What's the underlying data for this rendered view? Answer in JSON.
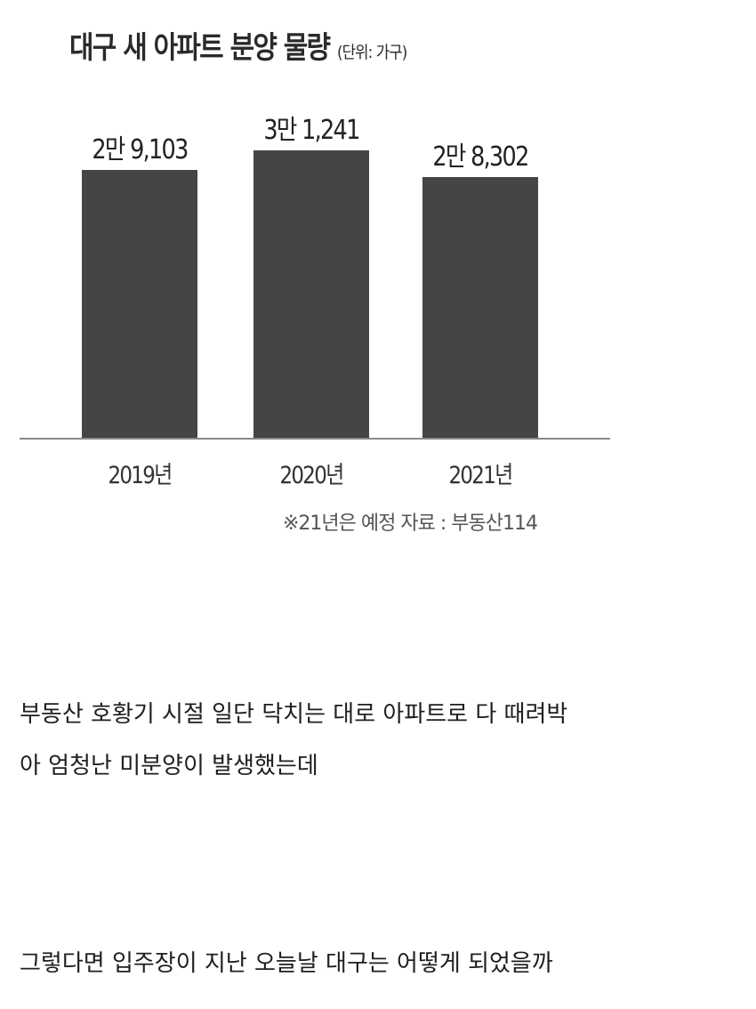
{
  "chart_data": {
    "type": "bar",
    "title": "대구 새 아파트 분양 물량",
    "unit": "(단위: 가구)",
    "categories": [
      "2019년",
      "2020년",
      "2021년"
    ],
    "values": [
      29103,
      31241,
      28302
    ],
    "data_labels": [
      "2만 9,103",
      "3만 1,241",
      "2만 8,302"
    ],
    "ylim": [
      0,
      32000
    ],
    "grid": false,
    "bar_color": "#454545",
    "note": "※21년은 예정 자료 : 부동산114"
  },
  "post": {
    "paragraphs": [
      "부동산 호황기 시절 일단 닥치는 대로 아파트로 다 때려박",
      "아 엄청난 미분양이 발생했는데",
      "그렇다면 입주장이 지난 오늘날 대구는 어떻게 되었을까"
    ]
  }
}
